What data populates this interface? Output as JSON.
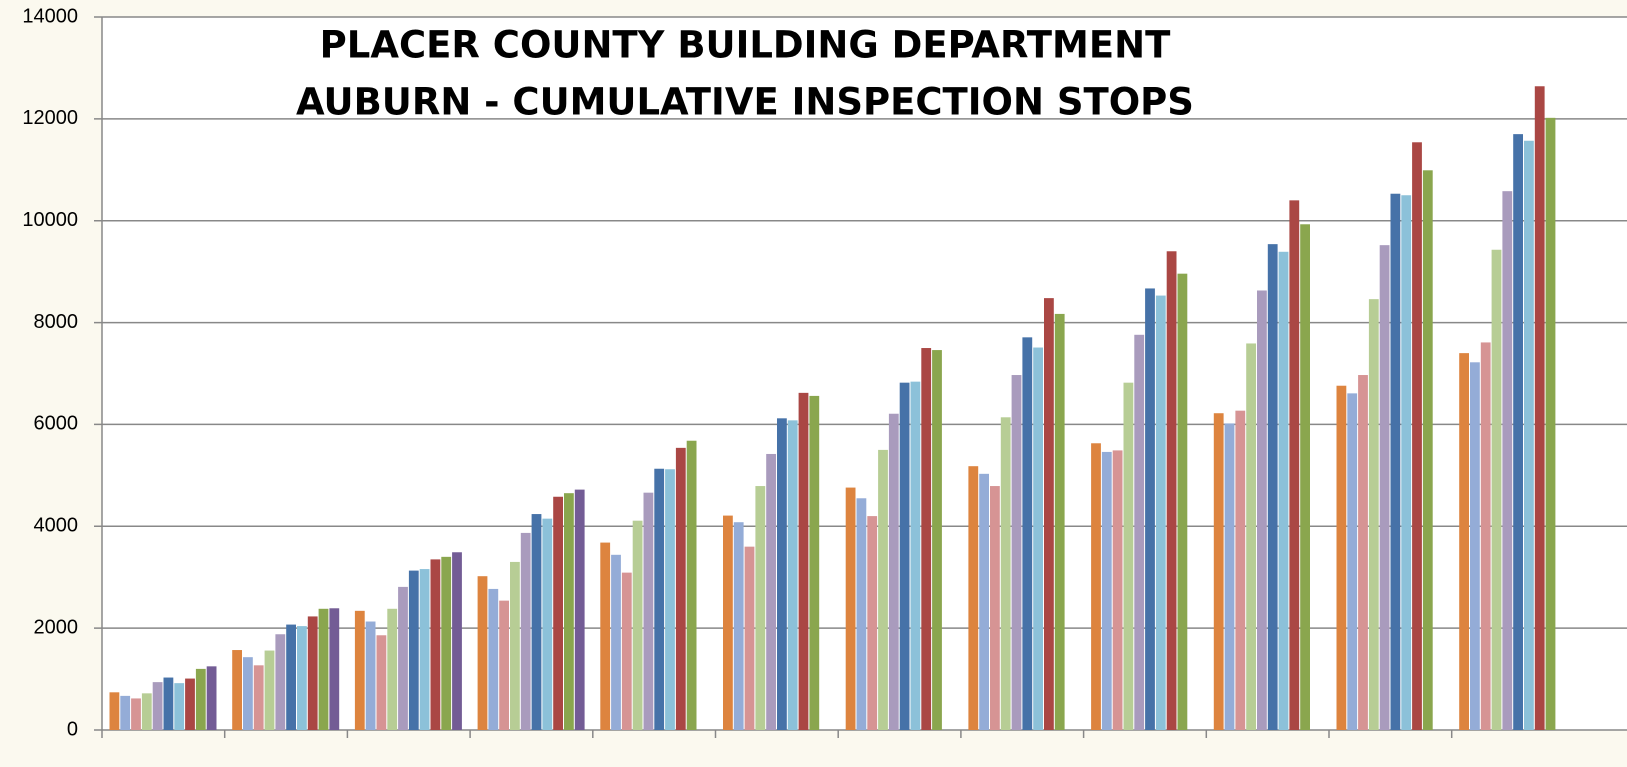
{
  "chart_data": {
    "type": "bar",
    "title": "PLACER COUNTY BUILDING DEPARTMENT",
    "subtitle": "AUBURN - CUMULATIVE  INSPECTION STOPS",
    "categories": [
      null,
      null,
      null,
      null,
      null,
      null,
      null,
      null,
      null,
      null,
      null,
      null
    ],
    "series": [
      {
        "color": "#dd843f",
        "values": [
          740,
          1570,
          2340,
          3020,
          3680,
          4210,
          4760,
          5180,
          5630,
          6220,
          6760,
          7400
        ]
      },
      {
        "color": "#94acd7",
        "values": [
          670,
          1430,
          2130,
          2770,
          3440,
          4080,
          4550,
          5030,
          5460,
          6020,
          6610,
          7220
        ]
      },
      {
        "color": "#d69494",
        "values": [
          620,
          1270,
          1860,
          2540,
          3090,
          3600,
          4200,
          4790,
          5490,
          6270,
          6970,
          7610
        ]
      },
      {
        "color": "#b7cd95",
        "values": [
          720,
          1560,
          2380,
          3300,
          4110,
          4790,
          5500,
          6140,
          6820,
          7590,
          8460,
          9430
        ]
      },
      {
        "color": "#a99bbd",
        "values": [
          940,
          1880,
          2810,
          3870,
          4660,
          5420,
          6210,
          6970,
          7760,
          8630,
          9520,
          10580
        ]
      },
      {
        "color": "#4672a8",
        "values": [
          1030,
          2070,
          3130,
          4240,
          5130,
          6120,
          6820,
          7710,
          8670,
          9540,
          10530,
          11700
        ]
      },
      {
        "color": "#8cc1d9",
        "values": [
          920,
          2040,
          3160,
          4150,
          5120,
          6080,
          6840,
          7510,
          8530,
          9390,
          10500,
          11570
        ]
      },
      {
        "color": "#aa4744",
        "values": [
          1010,
          2230,
          3350,
          4580,
          5540,
          6620,
          7500,
          8480,
          9400,
          10400,
          11540,
          12640
        ]
      },
      {
        "color": "#8aa64e",
        "values": [
          1200,
          2380,
          3400,
          4650,
          5680,
          6560,
          7460,
          8170,
          8960,
          9930,
          10990,
          12020
        ]
      },
      {
        "color": "#735c95",
        "values": [
          1250,
          2390,
          3490,
          4720,
          null,
          null,
          null,
          null,
          null,
          null,
          null,
          null
        ]
      }
    ],
    "ylim": [
      0,
      14000
    ],
    "yticks": [
      0,
      2000,
      4000,
      6000,
      8000,
      10000,
      12000,
      14000
    ],
    "grid": true
  }
}
